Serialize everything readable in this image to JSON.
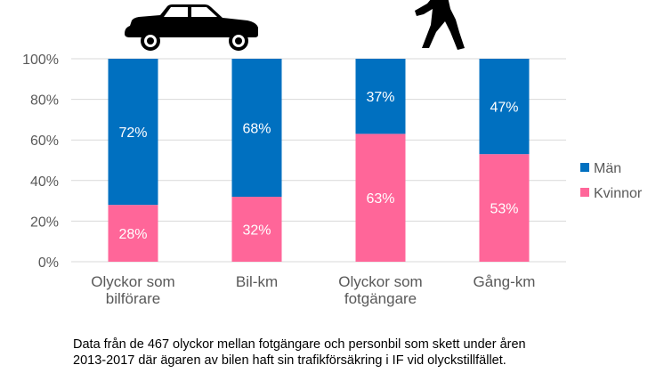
{
  "chart_data": {
    "type": "bar",
    "stacked": true,
    "percent": true,
    "categories": [
      [
        "Olyckor som",
        "bilförare"
      ],
      [
        "Bil-km"
      ],
      [
        "Olyckor som",
        "fotgängare"
      ],
      [
        "Gång-km"
      ]
    ],
    "series": [
      {
        "name": "Kvinnor",
        "color": "#ff6699",
        "values": [
          28,
          32,
          63,
          53
        ]
      },
      {
        "name": "Män",
        "color": "#0070c0",
        "values": [
          72,
          68,
          37,
          47
        ]
      }
    ],
    "ylim": [
      0,
      100
    ],
    "yticks": [
      0,
      20,
      40,
      60,
      80,
      100
    ],
    "ytick_labels": [
      "0%",
      "20%",
      "40%",
      "60%",
      "80%",
      "100%"
    ],
    "grid": true,
    "legend_position": "right",
    "legend_order": [
      "Män",
      "Kvinnor"
    ],
    "icons": [
      {
        "name": "car-icon",
        "above_category": 0
      },
      {
        "name": "pedestrian-icon",
        "above_category": 2
      }
    ]
  },
  "footnote": {
    "line1": "Data från de 467 olyckor mellan fotgängare och personbil som skett under åren",
    "line2": "2013-2017 där ägaren av bilen haft sin trafikförsäkring i IF vid olyckstillfället."
  }
}
